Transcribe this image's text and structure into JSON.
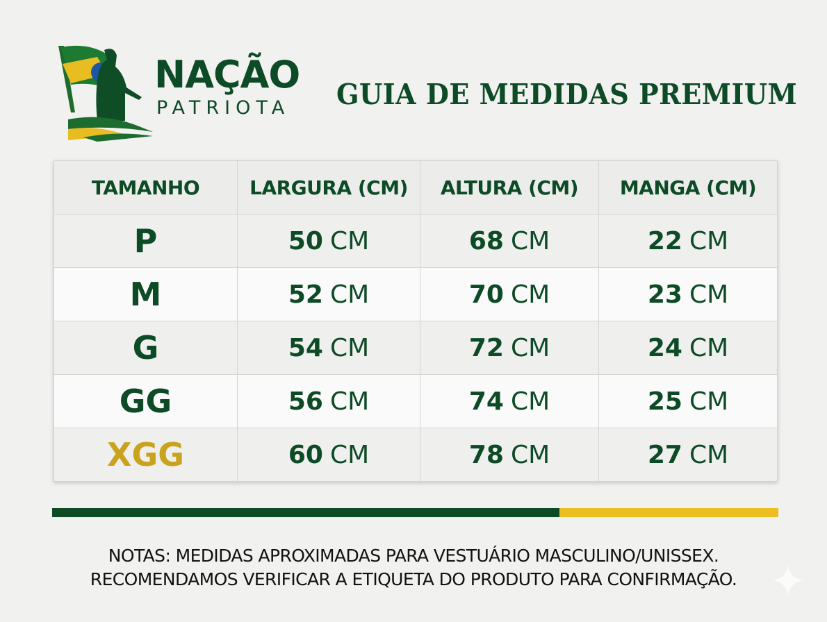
{
  "brand": {
    "line1": "NAÇÃO",
    "line2": "PATRIOTA"
  },
  "title": "GUIA DE MEDIDAS PREMIUM",
  "table": {
    "headers": [
      "TAMANHO",
      "LARGURA (CM)",
      "ALTURA (CM)",
      "MANGA (CM)"
    ],
    "unit": "CM",
    "rows": [
      {
        "size": "P",
        "largura": "50",
        "altura": "68",
        "manga": "22"
      },
      {
        "size": "M",
        "largura": "52",
        "altura": "70",
        "manga": "23"
      },
      {
        "size": "G",
        "largura": "54",
        "altura": "72",
        "manga": "24"
      },
      {
        "size": "GG",
        "largura": "56",
        "altura": "74",
        "manga": "25"
      },
      {
        "size": "XGG",
        "largura": "60",
        "altura": "78",
        "manga": "27",
        "highlight": "#c9a21e"
      }
    ]
  },
  "notes": [
    "NOTAS: MEDIDAS APROXIMADAS PARA VESTUÁRIO MASCULINO/UNISSEX.",
    "RECOMENDAMOS VERIFICAR A ETIQUETA DO PRODUTO PARA CONFIRMAÇÃO."
  ],
  "colors": {
    "green": "#0d4a26",
    "gold": "#c9a21e",
    "yellow": "#ecbf20"
  }
}
